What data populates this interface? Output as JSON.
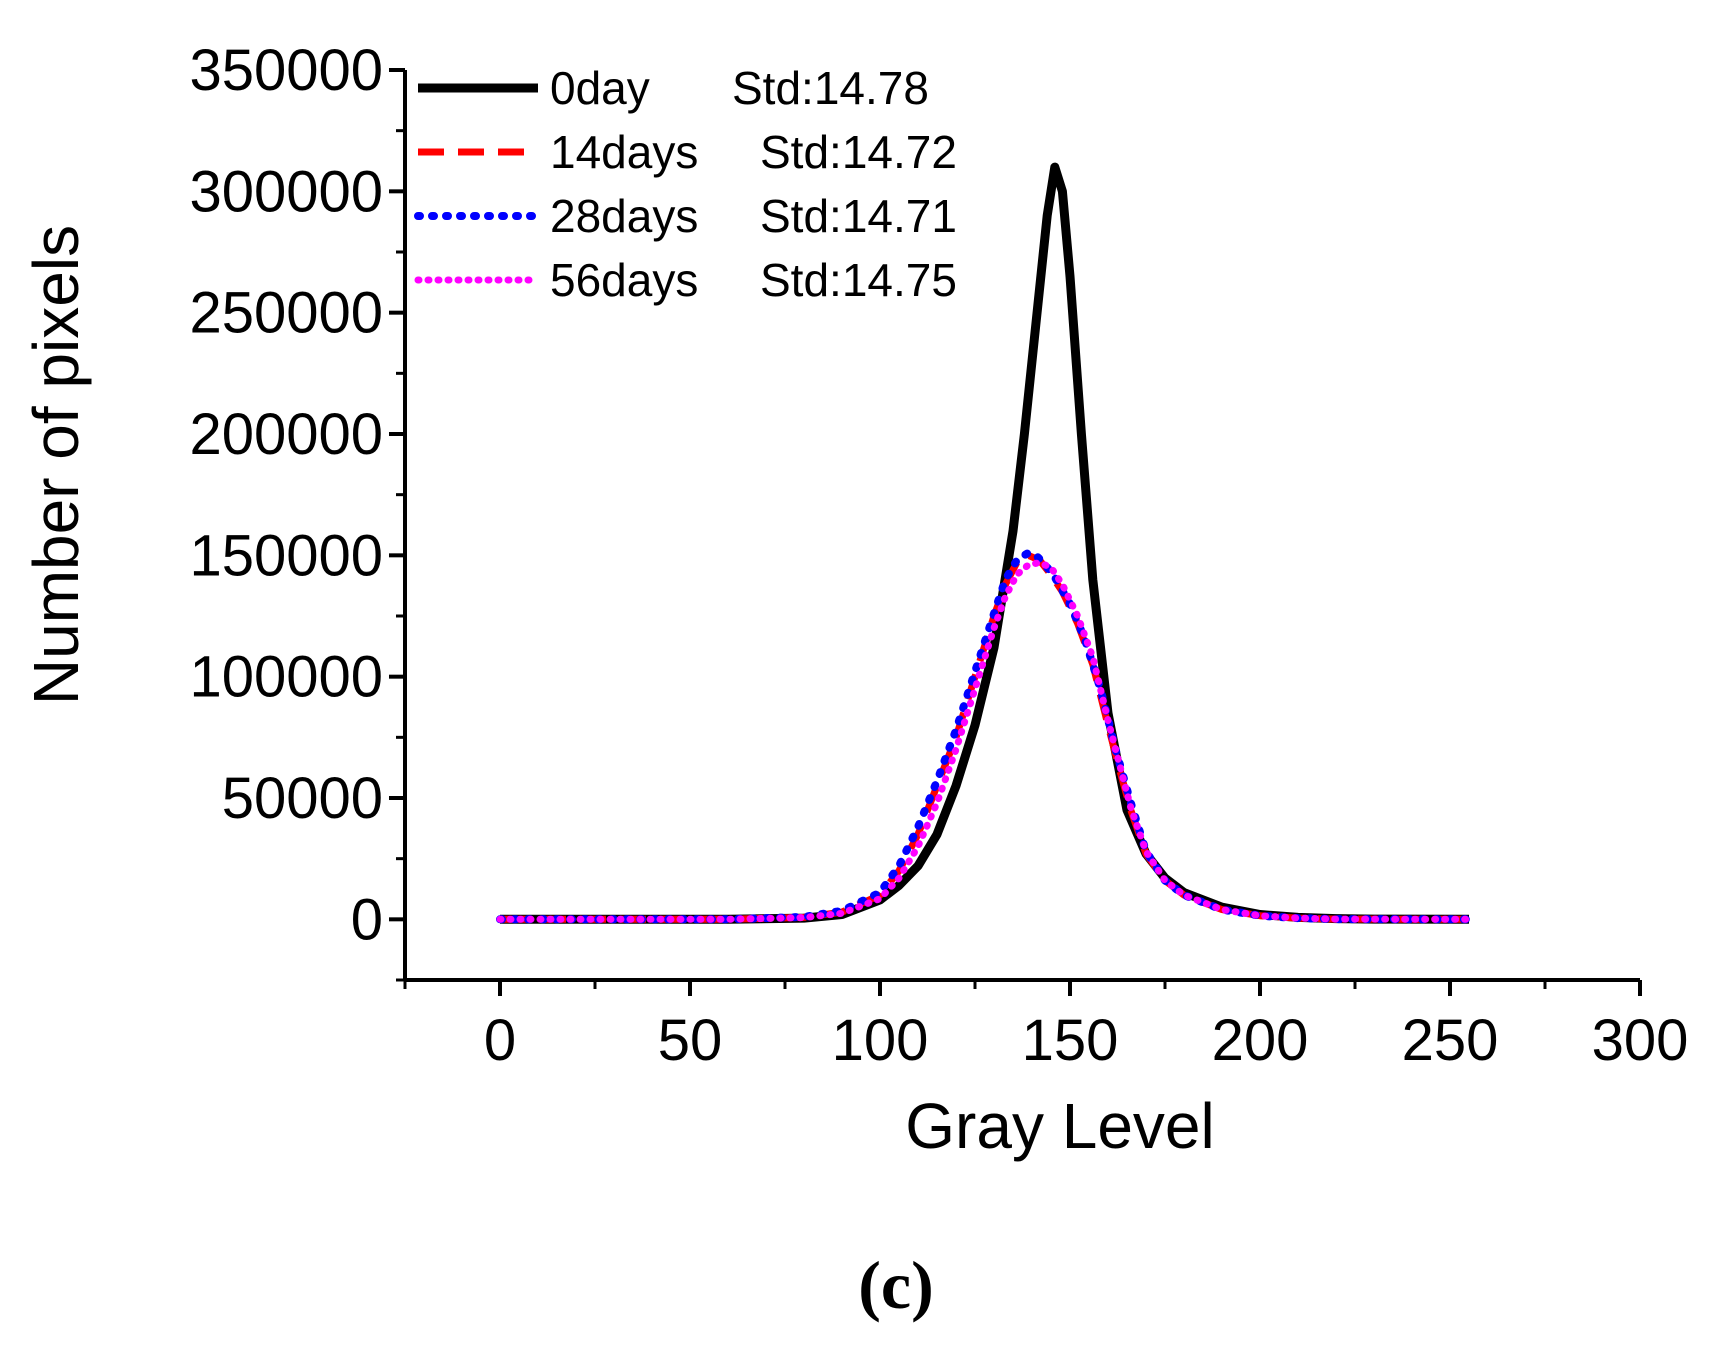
{
  "chart_data": {
    "type": "line",
    "title": "",
    "xlabel": "Gray Level",
    "ylabel": "Number of pixels",
    "xlim": [
      -25,
      300
    ],
    "ylim": [
      -25000,
      350000
    ],
    "xticks": [
      0,
      50,
      100,
      150,
      200,
      250,
      300
    ],
    "xtick_labels": [
      "0",
      "50",
      "100",
      "150",
      "200",
      "250",
      "300"
    ],
    "yticks": [
      0,
      50000,
      100000,
      150000,
      200000,
      250000,
      300000,
      350000
    ],
    "ytick_labels": [
      "0",
      "50000",
      "100000",
      "150000",
      "200000",
      "250000",
      "300000",
      "350000"
    ],
    "grid": false,
    "legend_position": "top-left",
    "series": [
      {
        "name": "0day",
        "legend_label": "0day",
        "std_label": "Std:14.78",
        "color": "#000000",
        "style": "solid",
        "x": [
          0,
          60,
          80,
          90,
          100,
          105,
          110,
          115,
          120,
          125,
          130,
          135,
          138,
          141,
          144,
          146,
          148,
          150,
          153,
          156,
          160,
          165,
          170,
          175,
          180,
          190,
          200,
          210,
          220,
          230,
          255
        ],
        "y": [
          0,
          0,
          500,
          2000,
          8000,
          14000,
          22000,
          35000,
          55000,
          80000,
          112000,
          160000,
          200000,
          245000,
          290000,
          310000,
          300000,
          265000,
          200000,
          140000,
          85000,
          45000,
          27000,
          17000,
          11000,
          5000,
          2000,
          800,
          300,
          100,
          0
        ]
      },
      {
        "name": "14days",
        "legend_label": "14days",
        "std_label": "Std:14.72",
        "color": "#ff0000",
        "style": "dashed",
        "x": [
          0,
          60,
          80,
          90,
          100,
          105,
          110,
          115,
          120,
          125,
          130,
          133,
          136,
          139,
          142,
          145,
          148,
          152,
          156,
          160,
          163,
          166,
          170,
          175,
          180,
          190,
          200,
          210,
          220,
          255
        ],
        "y": [
          0,
          0,
          800,
          3000,
          10000,
          20000,
          35000,
          55000,
          75000,
          100000,
          125000,
          138000,
          147000,
          150000,
          148000,
          142000,
          135000,
          122000,
          105000,
          80000,
          62000,
          45000,
          27000,
          16000,
          10000,
          4000,
          1500,
          500,
          100,
          0
        ]
      },
      {
        "name": "28days",
        "legend_label": "28days",
        "std_label": "Std:14.71",
        "color": "#0000ff",
        "style": "dotted",
        "x": [
          0,
          60,
          80,
          90,
          100,
          105,
          110,
          115,
          120,
          125,
          130,
          133,
          136,
          139,
          141,
          143,
          146,
          150,
          154,
          158,
          162,
          166,
          170,
          175,
          180,
          190,
          200,
          210,
          220,
          255
        ],
        "y": [
          0,
          0,
          1000,
          3500,
          11000,
          22000,
          38000,
          57000,
          78000,
          102000,
          126000,
          140000,
          148000,
          151000,
          150000,
          147000,
          141000,
          130000,
          115000,
          95000,
          70000,
          48000,
          28000,
          16000,
          10000,
          4000,
          1500,
          500,
          100,
          0
        ]
      },
      {
        "name": "56days",
        "legend_label": "56days",
        "std_label": "Std:14.75",
        "color": "#ff00ff",
        "style": "dotted",
        "x": [
          0,
          60,
          80,
          90,
          100,
          105,
          110,
          115,
          120,
          125,
          130,
          133,
          136,
          139,
          142,
          145,
          148,
          152,
          156,
          160,
          163,
          166,
          170,
          175,
          180,
          190,
          200,
          210,
          220,
          255
        ],
        "y": [
          0,
          0,
          700,
          2500,
          8500,
          17000,
          30000,
          48000,
          70000,
          95000,
          120000,
          133000,
          142000,
          146000,
          147000,
          145000,
          138000,
          125000,
          108000,
          82000,
          64000,
          46000,
          28000,
          16000,
          10000,
          4000,
          1500,
          500,
          100,
          0
        ]
      }
    ]
  },
  "caption": "(c)"
}
